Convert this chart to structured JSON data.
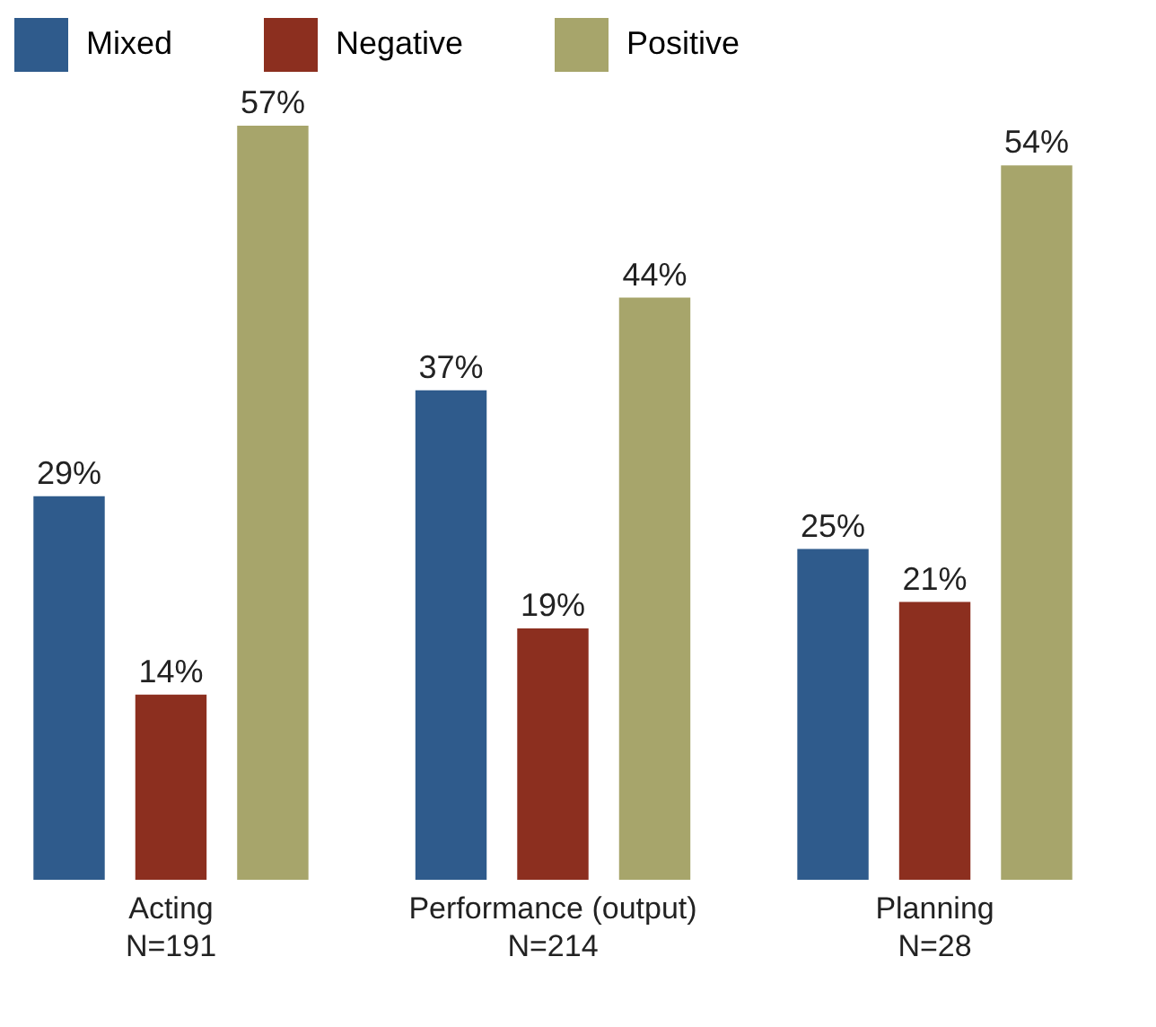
{
  "chart_data": {
    "type": "bar",
    "categories": [
      "Acting\nN=191",
      "Performance (output)\nN=214",
      "Planning\nN=28"
    ],
    "series": [
      {
        "name": "Mixed",
        "color": "#2f5b8c",
        "values": [
          29,
          37,
          25
        ],
        "value_labels": [
          "29%",
          "37%",
          "25%"
        ]
      },
      {
        "name": "Negative",
        "color": "#8c2f1f",
        "values": [
          14,
          19,
          21
        ],
        "value_labels": [
          "14%",
          "19%",
          "21%"
        ]
      },
      {
        "name": "Positive",
        "color": "#a7a56b",
        "values": [
          57,
          44,
          54
        ],
        "value_labels": [
          "57%",
          "44%",
          "54%"
        ]
      }
    ],
    "legend": "top",
    "grid": false
  }
}
